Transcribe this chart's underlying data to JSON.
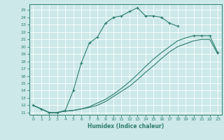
{
  "bg_color": "#cce8e8",
  "grid_color": "#ffffff",
  "line_color": "#2d7d6d",
  "xlabel": "Humidex (Indice chaleur)",
  "xlim": [
    -0.5,
    23.5
  ],
  "ylim": [
    10.7,
    25.8
  ],
  "xticks": [
    0,
    1,
    2,
    3,
    4,
    5,
    6,
    7,
    8,
    9,
    10,
    11,
    12,
    13,
    14,
    15,
    16,
    17,
    18,
    19,
    20,
    21,
    22,
    23
  ],
  "yticks": [
    11,
    12,
    13,
    14,
    15,
    16,
    17,
    18,
    19,
    20,
    21,
    22,
    23,
    24,
    25
  ],
  "curve1_x": [
    0,
    1,
    2,
    3,
    4,
    5,
    6,
    7,
    8,
    9,
    10,
    11,
    12,
    13,
    14,
    15,
    16,
    17,
    18
  ],
  "curve1_y": [
    12.0,
    11.5,
    11.0,
    11.0,
    11.3,
    14.0,
    17.8,
    20.5,
    21.3,
    23.2,
    24.0,
    24.2,
    24.8,
    25.3,
    24.2,
    24.2,
    24.0,
    23.2,
    22.8
  ],
  "curve2_x": [
    0,
    1,
    2,
    3,
    4,
    5,
    6,
    7,
    8,
    9,
    10,
    11,
    12,
    13,
    14,
    15,
    16,
    17,
    18,
    19,
    20,
    21,
    22,
    23
  ],
  "curve2_y": [
    12.0,
    11.5,
    11.0,
    11.0,
    11.2,
    11.3,
    11.5,
    11.8,
    12.3,
    12.8,
    13.5,
    14.3,
    15.2,
    16.2,
    17.3,
    18.3,
    19.2,
    20.0,
    20.8,
    21.2,
    21.5,
    21.5,
    21.5,
    19.2
  ],
  "curve2_mark_idx": [
    20,
    21,
    22,
    23
  ],
  "curve3_x": [
    0,
    1,
    2,
    3,
    4,
    5,
    6,
    7,
    8,
    9,
    10,
    11,
    12,
    13,
    14,
    15,
    16,
    17,
    18,
    19,
    20,
    21,
    22,
    23
  ],
  "curve3_y": [
    12.0,
    11.5,
    11.0,
    11.0,
    11.2,
    11.3,
    11.5,
    11.7,
    12.0,
    12.5,
    13.2,
    13.9,
    14.6,
    15.5,
    16.5,
    17.4,
    18.4,
    19.3,
    20.0,
    20.4,
    20.8,
    21.0,
    21.0,
    19.0
  ]
}
